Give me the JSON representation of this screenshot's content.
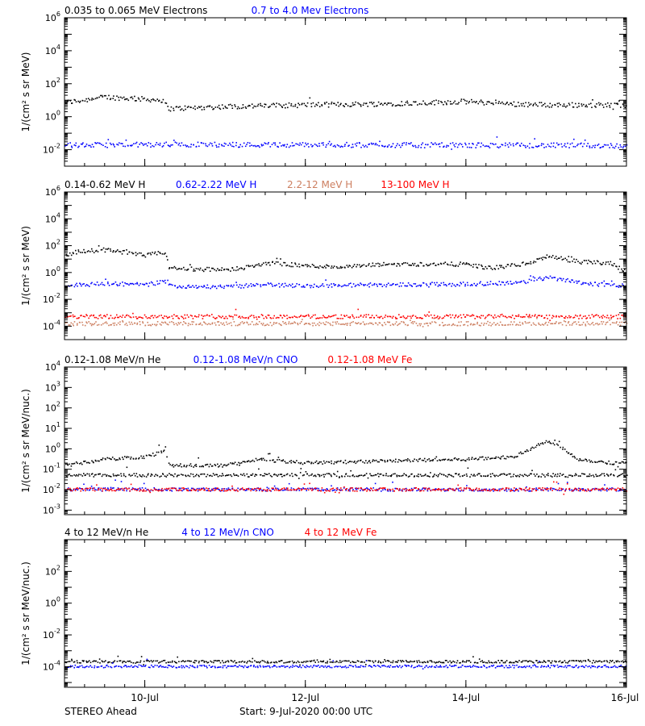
{
  "chart_data": [
    {
      "type": "scatter",
      "legend": [
        {
          "label": "0.035 to 0.065 MeV Electrons",
          "color": "#000000"
        },
        {
          "label": "0.7 to 4.0 Mev Electrons",
          "color": "#0000ff"
        }
      ],
      "ylabel": "1/(cm² s sr MeV)",
      "yscale": "log",
      "ylim": [
        0.001,
        1000000
      ],
      "ytick_exponents": [
        -2,
        0,
        2,
        4,
        6
      ],
      "series": [
        {
          "color": "#000000",
          "profile": [
            [
              0,
              7
            ],
            [
              0.25,
              10
            ],
            [
              0.5,
              15
            ],
            [
              0.75,
              13
            ],
            [
              1.0,
              11
            ],
            [
              1.2,
              10
            ],
            [
              1.3,
              3
            ],
            [
              2,
              4
            ],
            [
              3,
              5
            ],
            [
              4,
              6
            ],
            [
              5,
              8
            ],
            [
              5.5,
              6
            ],
            [
              6,
              5
            ],
            [
              7,
              5
            ]
          ]
        },
        {
          "color": "#0000ff",
          "profile": [
            [
              0,
              0.018
            ],
            [
              1.3,
              0.02
            ],
            [
              3,
              0.019
            ],
            [
              5,
              0.018
            ],
            [
              7,
              0.017
            ]
          ]
        }
      ]
    },
    {
      "type": "scatter",
      "legend": [
        {
          "label": "0.14-0.62 MeV H",
          "color": "#000000"
        },
        {
          "label": "0.62-2.22 MeV H",
          "color": "#0000ff"
        },
        {
          "label": "2.2-12 MeV H",
          "color": "#cd7f60"
        },
        {
          "label": "13-100 MeV H",
          "color": "#ff0000"
        }
      ],
      "ylabel": "1/(cm² s sr MeV)",
      "yscale": "log",
      "ylim": [
        1e-05,
        1000000
      ],
      "ytick_exponents": [
        -4,
        -2,
        0,
        2,
        4,
        6
      ],
      "series": [
        {
          "color": "#000000",
          "profile": [
            [
              0,
              15
            ],
            [
              0.1,
              30
            ],
            [
              0.3,
              40
            ],
            [
              0.6,
              45
            ],
            [
              0.8,
              25
            ],
            [
              1.0,
              18
            ],
            [
              1.15,
              25
            ],
            [
              1.25,
              30
            ],
            [
              1.3,
              2
            ],
            [
              2,
              1.5
            ],
            [
              2.4,
              3
            ],
            [
              2.5,
              5
            ],
            [
              3,
              3
            ],
            [
              3.5,
              2.5
            ],
            [
              4,
              4
            ],
            [
              5,
              4
            ],
            [
              5.3,
              2
            ],
            [
              5.8,
              5
            ],
            [
              6,
              15
            ],
            [
              6.2,
              10
            ],
            [
              6.4,
              6
            ],
            [
              6.8,
              5
            ],
            [
              7,
              1
            ]
          ]
        },
        {
          "color": "#0000ff",
          "profile": [
            [
              0,
              0.1
            ],
            [
              0.5,
              0.15
            ],
            [
              1.0,
              0.12
            ],
            [
              1.25,
              0.2
            ],
            [
              1.3,
              0.1
            ],
            [
              2,
              0.08
            ],
            [
              2.5,
              0.12
            ],
            [
              3,
              0.1
            ],
            [
              4,
              0.12
            ],
            [
              5,
              0.13
            ],
            [
              5.7,
              0.18
            ],
            [
              6,
              0.4
            ],
            [
              6.2,
              0.3
            ],
            [
              6.5,
              0.15
            ],
            [
              7,
              0.09
            ]
          ]
        },
        {
          "color": "#cd7f60",
          "profile": [
            [
              0,
              0.00015
            ],
            [
              7,
              0.00015
            ]
          ]
        },
        {
          "color": "#ff0000",
          "profile": [
            [
              0,
              0.0005
            ],
            [
              7,
              0.0005
            ]
          ]
        }
      ]
    },
    {
      "type": "scatter",
      "legend": [
        {
          "label": "0.12-1.08 MeV/n He",
          "color": "#000000"
        },
        {
          "label": "0.12-1.08 MeV/n CNO",
          "color": "#0000ff"
        },
        {
          "label": "0.12-1.08 MeV Fe",
          "color": "#ff0000"
        }
      ],
      "ylabel": "1/(cm² s sr MeV/nuc.)",
      "yscale": "log",
      "ylim": [
        0.0006,
        10000
      ],
      "ytick_exponents": [
        -3,
        -2,
        -1,
        0,
        1,
        2,
        3,
        4
      ],
      "series": [
        {
          "color": "#000000",
          "profile": [
            [
              0,
              0.05
            ],
            [
              7,
              0.05
            ]
          ]
        },
        {
          "color": "#000000",
          "profile": [
            [
              0,
              0.15
            ],
            [
              0.5,
              0.3
            ],
            [
              1,
              0.4
            ],
            [
              1.25,
              0.8
            ],
            [
              1.3,
              0.15
            ],
            [
              2,
              0.15
            ],
            [
              2.4,
              0.3
            ],
            [
              3,
              0.2
            ],
            [
              4,
              0.25
            ],
            [
              5,
              0.3
            ],
            [
              5.6,
              0.4
            ],
            [
              5.8,
              1
            ],
            [
              6,
              2.5
            ],
            [
              6.2,
              1
            ],
            [
              6.4,
              0.3
            ],
            [
              6.8,
              0.2
            ],
            [
              7,
              0.2
            ]
          ]
        },
        {
          "color": "#0000ff",
          "profile": [
            [
              0,
              0.01
            ],
            [
              7,
              0.01
            ]
          ]
        },
        {
          "color": "#ff0000",
          "profile": [
            [
              0,
              0.01
            ],
            [
              7,
              0.01
            ]
          ]
        }
      ]
    },
    {
      "type": "scatter",
      "legend": [
        {
          "label": "4 to 12 MeV/n He",
          "color": "#000000"
        },
        {
          "label": "4 to 12 MeV/n CNO",
          "color": "#0000ff"
        },
        {
          "label": "4 to 12 MeV Fe",
          "color": "#ff0000"
        }
      ],
      "ylabel": "1/(cm² s sr MeV/nuc.)",
      "yscale": "log",
      "ylim": [
        5e-06,
        10000
      ],
      "ytick_exponents": [
        -4,
        -2,
        0,
        2
      ],
      "series": [
        {
          "color": "#000000",
          "profile": [
            [
              0,
              0.0002
            ],
            [
              7,
              0.0002
            ]
          ]
        },
        {
          "color": "#0000ff",
          "profile": [
            [
              0,
              0.0001
            ],
            [
              7,
              0.0001
            ]
          ]
        }
      ]
    }
  ],
  "x_axis": {
    "unit": "days since start",
    "xlim": [
      0,
      7
    ],
    "major_ticks": [
      {
        "x": 1,
        "label": "10-Jul"
      },
      {
        "x": 3,
        "label": "12-Jul"
      },
      {
        "x": 5,
        "label": "14-Jul"
      },
      {
        "x": 7,
        "label": "16-Jul"
      }
    ],
    "minor_step": 0.25
  },
  "footer": {
    "left": "STEREO Ahead",
    "start": "Start:  9-Jul-2020 00:00 UTC"
  }
}
